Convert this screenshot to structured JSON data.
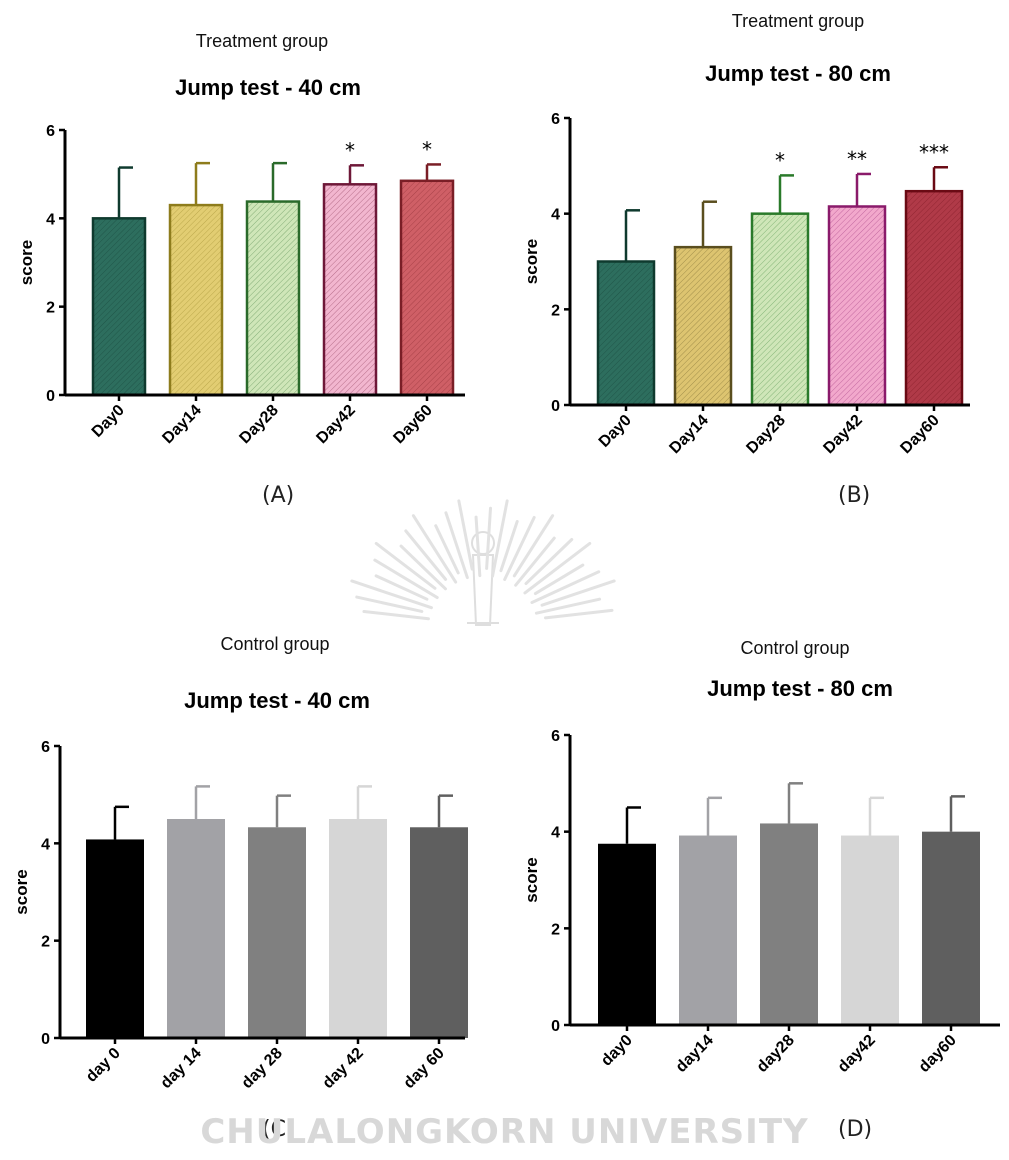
{
  "watermark_text": "CHULALONGKORN UNIVERSITY",
  "chart_data": [
    {
      "id": "A",
      "panel_label": "(A)",
      "type": "bar",
      "group": "Treatment group",
      "title": "Jump test - 40 cm",
      "ylabel": "score",
      "ylim": [
        0,
        6
      ],
      "yticks": [
        "0",
        "2",
        "4",
        "6"
      ],
      "categories": [
        "Day0",
        "Day14",
        "Day28",
        "Day42",
        "Day60"
      ],
      "values": [
        4.0,
        4.3,
        4.38,
        4.77,
        4.85
      ],
      "errors": [
        1.15,
        0.95,
        0.87,
        0.43,
        0.37
      ],
      "significance": [
        "",
        "",
        "",
        "*",
        "*"
      ],
      "fills": [
        "#2d6e5e",
        "#e2cd72",
        "#cfe6b8",
        "#f2b6cf",
        "#cf5f66"
      ],
      "strokes": [
        "#0f3a2e",
        "#8e7c1c",
        "#2a6a2a",
        "#6e1838",
        "#7a1e26"
      ],
      "hatched": true
    },
    {
      "id": "B",
      "panel_label": "(B)",
      "type": "bar",
      "group": "Treatment group",
      "title": "Jump test - 80 cm",
      "ylabel": "score",
      "ylim": [
        0,
        6
      ],
      "yticks": [
        "0",
        "2",
        "4",
        "6"
      ],
      "categories": [
        "Day0",
        "Day14",
        "Day28",
        "Day42",
        "Day60"
      ],
      "values": [
        3.0,
        3.3,
        4.0,
        4.15,
        4.47
      ],
      "errors": [
        1.07,
        0.95,
        0.8,
        0.68,
        0.5
      ],
      "significance": [
        "",
        "",
        "*",
        "**",
        "***"
      ],
      "fills": [
        "#2d6e5e",
        "#ddc470",
        "#cfe6b8",
        "#f2a8cc",
        "#b03a48"
      ],
      "strokes": [
        "#0f3a2e",
        "#5a4e1e",
        "#2a7a2a",
        "#8a1a6a",
        "#6a0a14"
      ],
      "hatched": true
    },
    {
      "id": "C",
      "panel_label": "(C)",
      "type": "bar",
      "group": "Control group",
      "title": "Jump test - 40 cm",
      "ylabel": "score",
      "ylim": [
        0,
        6
      ],
      "yticks": [
        "0",
        "2",
        "4",
        "6"
      ],
      "categories": [
        "day 0",
        "day 14",
        "day 28",
        "day 42",
        "day 60"
      ],
      "values": [
        4.08,
        4.5,
        4.33,
        4.5,
        4.33
      ],
      "errors": [
        0.67,
        0.67,
        0.65,
        0.67,
        0.65
      ],
      "significance": [
        "",
        "",
        "",
        "",
        ""
      ],
      "fills": [
        "#000000",
        "#a2a2a6",
        "#808080",
        "#d6d6d6",
        "#5f5f5f"
      ],
      "strokes": [
        "#000000",
        "#a2a2a6",
        "#808080",
        "#d6d6d6",
        "#5f5f5f"
      ],
      "hatched": false
    },
    {
      "id": "D",
      "panel_label": "(D)",
      "type": "bar",
      "group": "Control group",
      "title": "Jump test - 80 cm",
      "ylabel": "score",
      "ylim": [
        0,
        6
      ],
      "yticks": [
        "0",
        "2",
        "4",
        "6"
      ],
      "categories": [
        "day0",
        "day14",
        "day28",
        "day42",
        "day60"
      ],
      "values": [
        3.75,
        3.92,
        4.17,
        3.92,
        4.0
      ],
      "errors": [
        0.75,
        0.78,
        0.83,
        0.78,
        0.73
      ],
      "significance": [
        "",
        "",
        "",
        "",
        ""
      ],
      "fills": [
        "#000000",
        "#a2a2a6",
        "#808080",
        "#d6d6d6",
        "#5f5f5f"
      ],
      "strokes": [
        "#000000",
        "#a2a2a6",
        "#808080",
        "#d6d6d6",
        "#5f5f5f"
      ],
      "hatched": false
    }
  ]
}
